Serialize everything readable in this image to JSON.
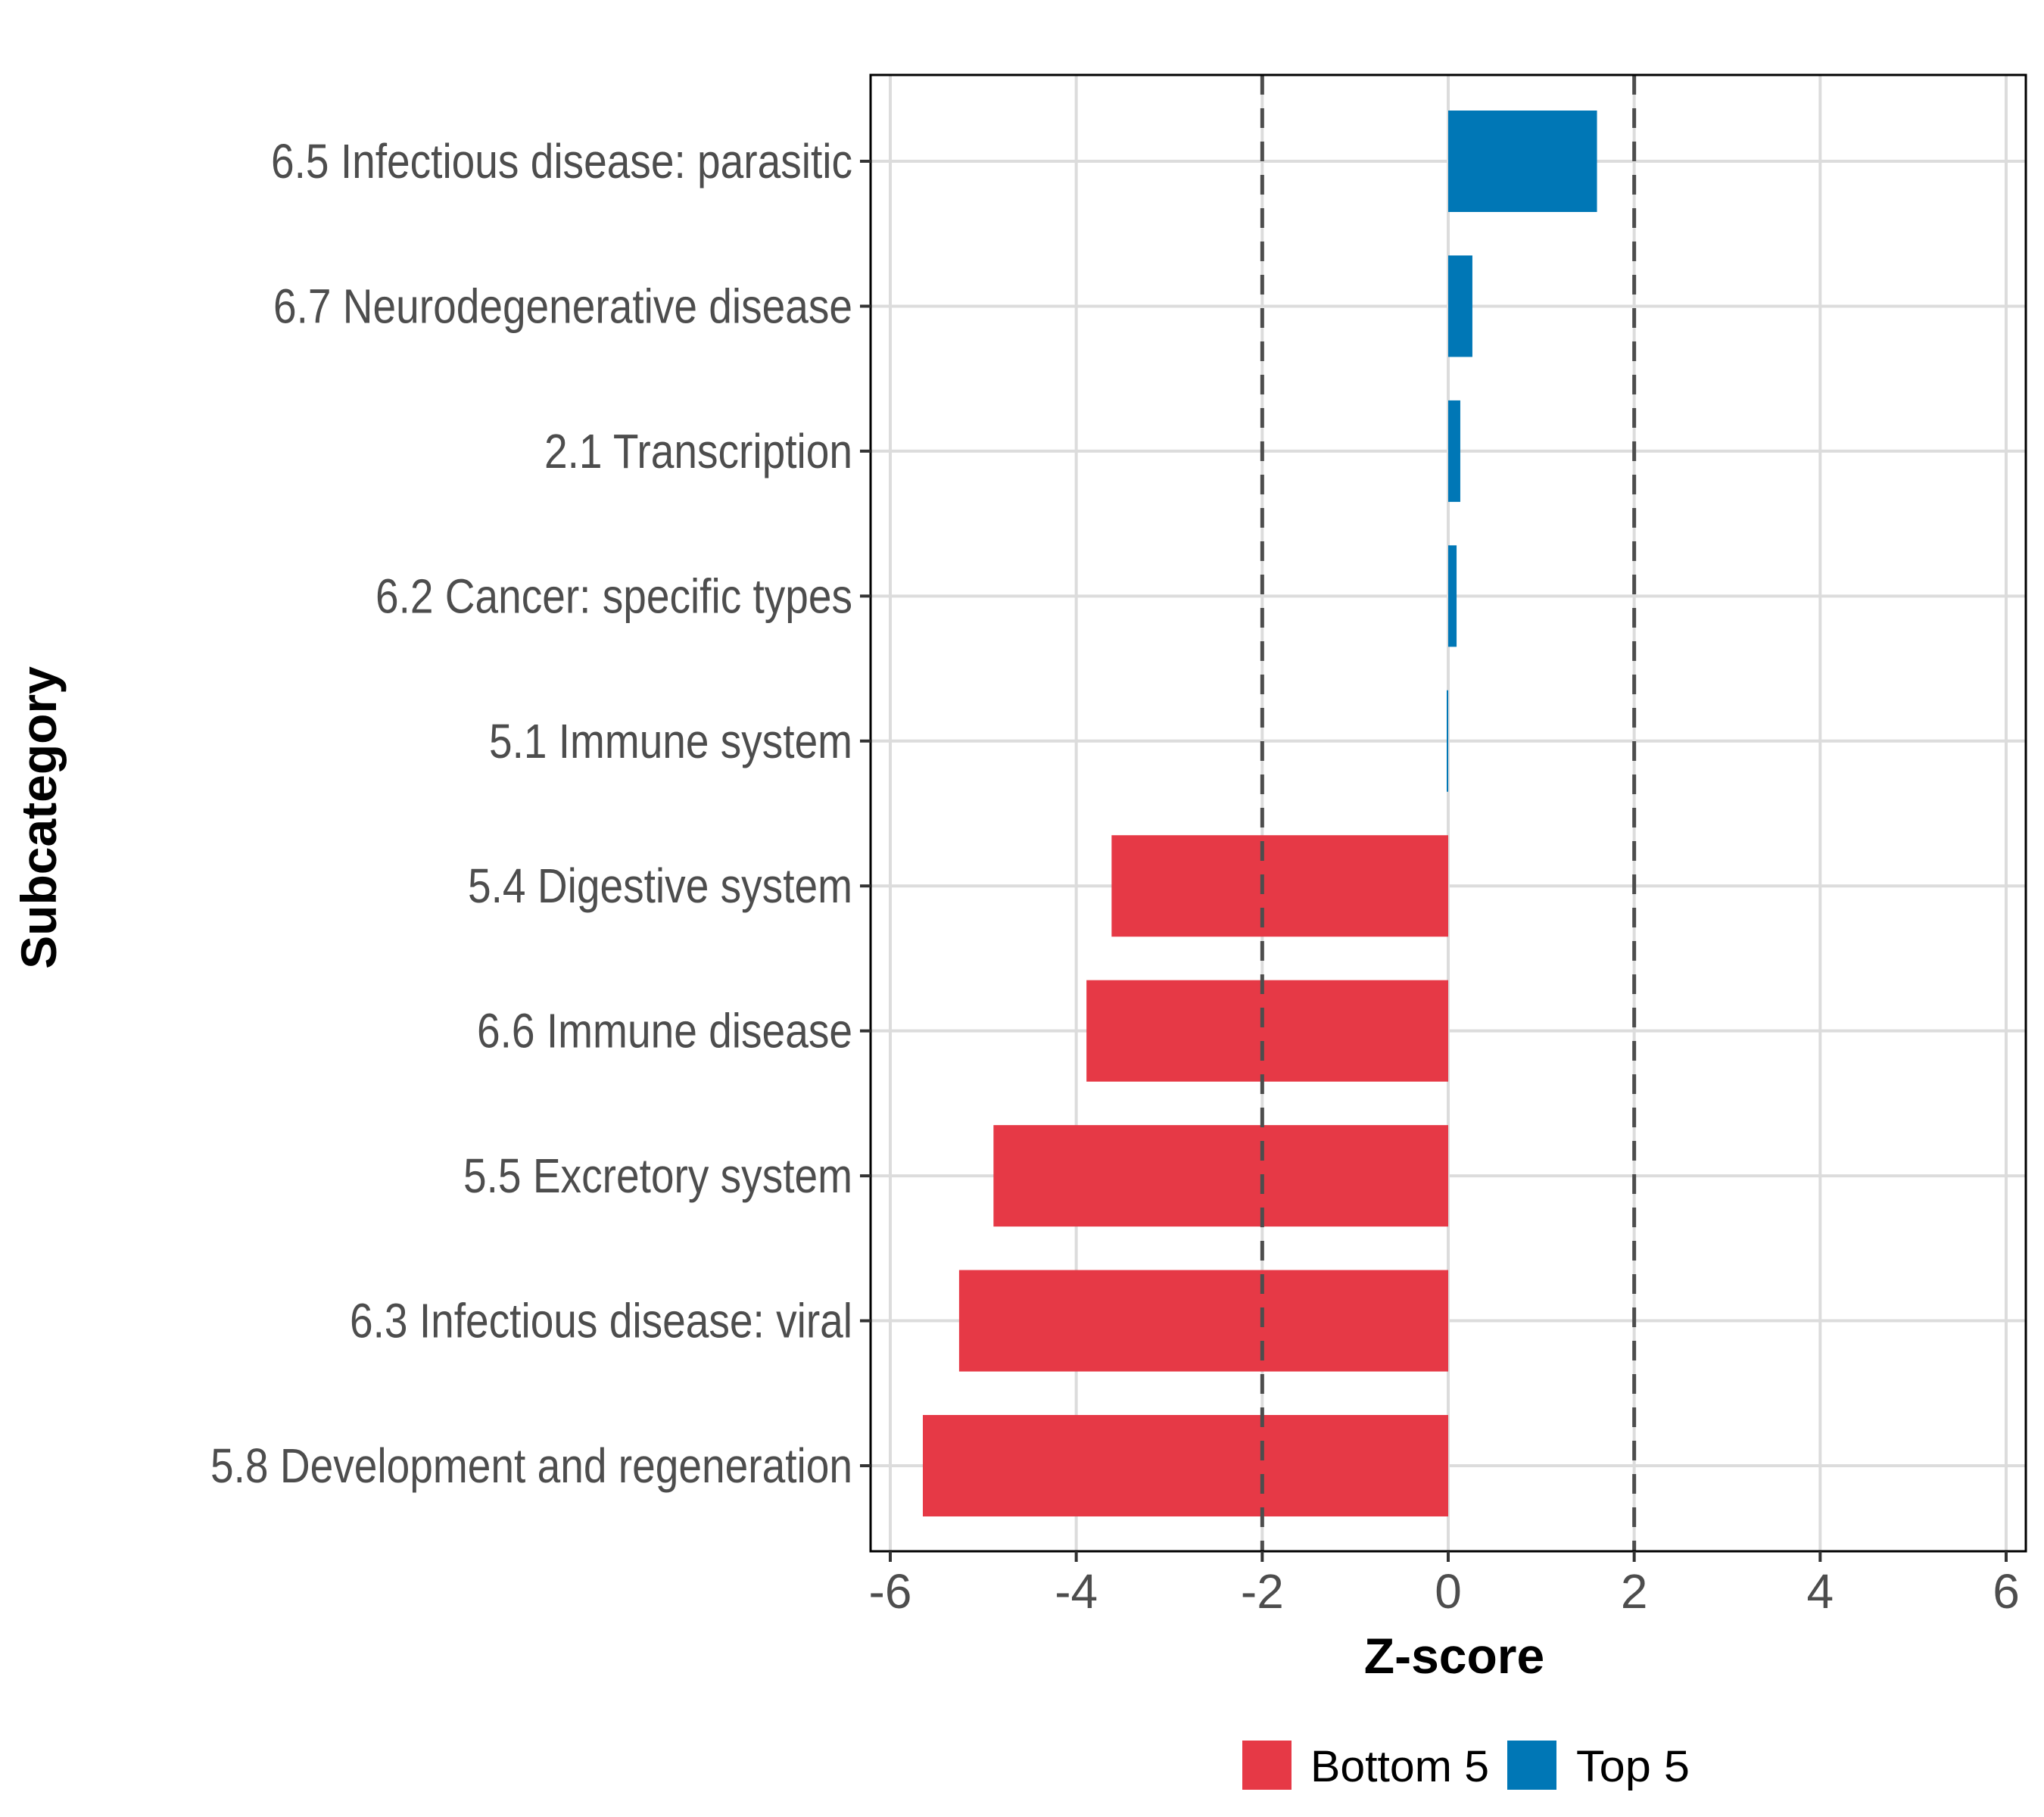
{
  "chart_data": {
    "type": "bar",
    "orientation": "horizontal",
    "title": "",
    "xlabel": "Z-score",
    "ylabel": "Subcategory",
    "xlim": [
      -6.2,
      6.2
    ],
    "xticks": [
      -6,
      -4,
      -2,
      0,
      2,
      4,
      6
    ],
    "xtick_labels": [
      "-6",
      "-4",
      "-2",
      "0",
      "2",
      "4",
      "6"
    ],
    "grid": true,
    "reference_lines": [
      {
        "x": -2,
        "style": "dashed"
      },
      {
        "x": 2,
        "style": "dashed"
      }
    ],
    "categories": [
      "6.5 Infectious disease: parasitic",
      "6.7 Neurodegenerative disease",
      "2.1 Transcription",
      "6.2 Cancer: specific types",
      "5.1 Immune system",
      "5.4 Digestive system",
      "6.6 Immune disease",
      "5.5 Excretory system",
      "6.3 Infectious disease: viral",
      "5.8 Development and regeneration"
    ],
    "values": [
      1.6,
      0.26,
      0.13,
      0.09,
      -0.01,
      -3.62,
      -3.89,
      -4.89,
      -5.26,
      -5.65
    ],
    "groups": [
      "Top 5",
      "Top 5",
      "Top 5",
      "Top 5",
      "Top 5",
      "Bottom 5",
      "Bottom 5",
      "Bottom 5",
      "Bottom 5",
      "Bottom 5"
    ],
    "legend": {
      "position": "bottom",
      "entries": [
        {
          "label": "Bottom 5",
          "color": "#e63946"
        },
        {
          "label": "Top 5",
          "color": "#0077b6"
        }
      ]
    },
    "colors": {
      "Bottom 5": "#e63946",
      "Top 5": "#0077b6",
      "grid": "#dcdcdc",
      "reference_line": "#4d4d4d",
      "axis_text": "#4d4d4d"
    }
  }
}
